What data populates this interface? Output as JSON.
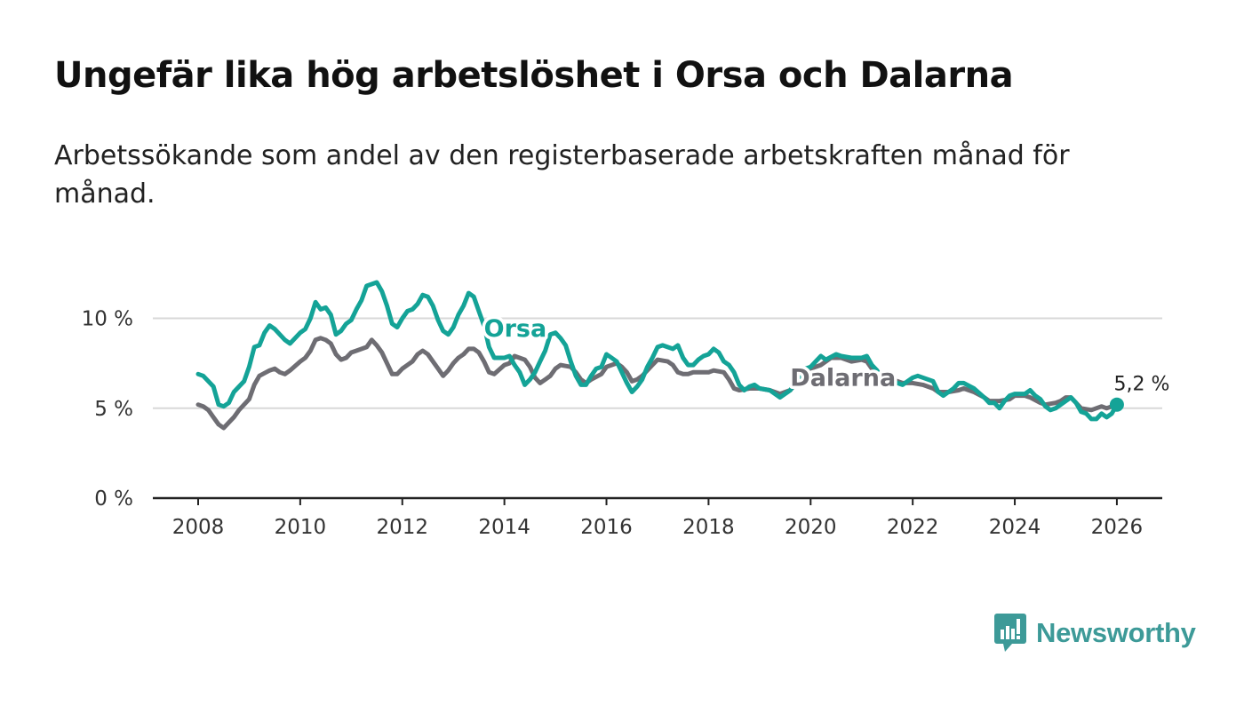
{
  "title": "Ungefär lika hög arbetslöshet i Orsa och Dalarna",
  "subtitle": "Arbetssökande som andel av den registerbaserade arbetskraften månad för månad.",
  "brand": {
    "name": "Newsworthy",
    "icon": "newsworthy-logo-icon",
    "color": "#3d9a98"
  },
  "chart_data": {
    "type": "line",
    "title": "Ungefär lika hög arbetslöshet i Orsa och Dalarna",
    "xlabel": "",
    "ylabel": "",
    "xlim": [
      2007.6,
      2026.9
    ],
    "ylim": [
      0,
      12
    ],
    "x_ticks": [
      2008,
      2010,
      2012,
      2014,
      2016,
      2018,
      2020,
      2022,
      2024,
      2026
    ],
    "x_tick_labels": [
      "2008",
      "2010",
      "2012",
      "2014",
      "2016",
      "2018",
      "2020",
      "2022",
      "2024",
      "2026"
    ],
    "y_ticks": [
      0,
      5,
      10
    ],
    "y_tick_labels": [
      "0 %",
      "5 %",
      "10 %"
    ],
    "grid": true,
    "end_label": "5,2 %",
    "series": [
      {
        "name": "Orsa",
        "color": "#14a397",
        "label_position": [
          2013.6,
          9.0
        ],
        "points": [
          [
            2008.0,
            6.9
          ],
          [
            2008.1,
            6.8
          ],
          [
            2008.3,
            6.2
          ],
          [
            2008.4,
            5.2
          ],
          [
            2008.5,
            5.1
          ],
          [
            2008.6,
            5.3
          ],
          [
            2008.7,
            5.9
          ],
          [
            2008.9,
            6.5
          ],
          [
            2009.0,
            7.3
          ],
          [
            2009.1,
            8.4
          ],
          [
            2009.2,
            8.5
          ],
          [
            2009.3,
            9.2
          ],
          [
            2009.4,
            9.6
          ],
          [
            2009.5,
            9.4
          ],
          [
            2009.7,
            8.8
          ],
          [
            2009.8,
            8.6
          ],
          [
            2010.0,
            9.2
          ],
          [
            2010.1,
            9.4
          ],
          [
            2010.2,
            10.0
          ],
          [
            2010.3,
            10.9
          ],
          [
            2010.4,
            10.5
          ],
          [
            2010.5,
            10.6
          ],
          [
            2010.6,
            10.2
          ],
          [
            2010.7,
            9.1
          ],
          [
            2010.8,
            9.3
          ],
          [
            2010.9,
            9.7
          ],
          [
            2011.0,
            9.9
          ],
          [
            2011.1,
            10.5
          ],
          [
            2011.2,
            11.0
          ],
          [
            2011.3,
            11.8
          ],
          [
            2011.4,
            11.9
          ],
          [
            2011.5,
            12.0
          ],
          [
            2011.6,
            11.5
          ],
          [
            2011.7,
            10.7
          ],
          [
            2011.8,
            9.7
          ],
          [
            2011.9,
            9.5
          ],
          [
            2012.0,
            10.0
          ],
          [
            2012.1,
            10.4
          ],
          [
            2012.2,
            10.5
          ],
          [
            2012.3,
            10.8
          ],
          [
            2012.4,
            11.3
          ],
          [
            2012.5,
            11.2
          ],
          [
            2012.6,
            10.7
          ],
          [
            2012.7,
            9.9
          ],
          [
            2012.8,
            9.3
          ],
          [
            2012.9,
            9.1
          ],
          [
            2013.0,
            9.5
          ],
          [
            2013.1,
            10.2
          ],
          [
            2013.2,
            10.7
          ],
          [
            2013.3,
            11.4
          ],
          [
            2013.4,
            11.2
          ],
          [
            2013.5,
            10.4
          ],
          [
            2013.6,
            9.6
          ],
          [
            2013.7,
            8.4
          ],
          [
            2013.8,
            7.8
          ],
          [
            2014.0,
            7.8
          ],
          [
            2014.1,
            7.9
          ],
          [
            2014.2,
            7.4
          ],
          [
            2014.3,
            7.0
          ],
          [
            2014.4,
            6.3
          ],
          [
            2014.5,
            6.6
          ],
          [
            2014.6,
            7.0
          ],
          [
            2014.7,
            7.6
          ],
          [
            2014.8,
            8.2
          ],
          [
            2014.9,
            9.1
          ],
          [
            2015.0,
            9.2
          ],
          [
            2015.1,
            8.9
          ],
          [
            2015.2,
            8.5
          ],
          [
            2015.3,
            7.6
          ],
          [
            2015.4,
            6.8
          ],
          [
            2015.5,
            6.3
          ],
          [
            2015.6,
            6.3
          ],
          [
            2015.7,
            6.8
          ],
          [
            2015.8,
            7.2
          ],
          [
            2015.9,
            7.3
          ],
          [
            2016.0,
            8.0
          ],
          [
            2016.1,
            7.8
          ],
          [
            2016.2,
            7.6
          ],
          [
            2016.3,
            7.0
          ],
          [
            2016.4,
            6.4
          ],
          [
            2016.5,
            5.9
          ],
          [
            2016.6,
            6.2
          ],
          [
            2016.7,
            6.6
          ],
          [
            2016.8,
            7.3
          ],
          [
            2016.9,
            7.8
          ],
          [
            2017.0,
            8.4
          ],
          [
            2017.1,
            8.5
          ],
          [
            2017.3,
            8.3
          ],
          [
            2017.4,
            8.5
          ],
          [
            2017.5,
            7.8
          ],
          [
            2017.6,
            7.4
          ],
          [
            2017.7,
            7.4
          ],
          [
            2017.8,
            7.7
          ],
          [
            2017.9,
            7.9
          ],
          [
            2018.0,
            8.0
          ],
          [
            2018.1,
            8.3
          ],
          [
            2018.2,
            8.1
          ],
          [
            2018.3,
            7.6
          ],
          [
            2018.4,
            7.4
          ],
          [
            2018.5,
            7.0
          ],
          [
            2018.6,
            6.3
          ],
          [
            2018.7,
            6.0
          ],
          [
            2018.8,
            6.2
          ],
          [
            2018.9,
            6.3
          ],
          [
            2019.0,
            6.1
          ],
          [
            2019.2,
            6.0
          ],
          [
            2019.4,
            5.6
          ],
          [
            2019.6,
            6.0
          ],
          [
            2019.9,
            7.2
          ],
          [
            2020.0,
            7.3
          ],
          [
            2020.1,
            7.6
          ],
          [
            2020.2,
            7.9
          ],
          [
            2020.3,
            7.7
          ],
          [
            2020.5,
            8.0
          ],
          [
            2020.6,
            7.9
          ],
          [
            2020.8,
            7.8
          ],
          [
            2021.0,
            7.8
          ],
          [
            2021.1,
            7.9
          ],
          [
            2021.2,
            7.4
          ],
          [
            2021.3,
            7.1
          ],
          [
            2021.4,
            6.6
          ],
          [
            2021.5,
            6.6
          ],
          [
            2021.7,
            6.4
          ],
          [
            2021.8,
            6.3
          ],
          [
            2022.0,
            6.7
          ],
          [
            2022.1,
            6.8
          ],
          [
            2022.2,
            6.7
          ],
          [
            2022.4,
            6.5
          ],
          [
            2022.5,
            5.9
          ],
          [
            2022.6,
            5.7
          ],
          [
            2022.7,
            5.9
          ],
          [
            2022.8,
            6.1
          ],
          [
            2022.9,
            6.4
          ],
          [
            2023.0,
            6.4
          ],
          [
            2023.2,
            6.1
          ],
          [
            2023.4,
            5.6
          ],
          [
            2023.5,
            5.3
          ],
          [
            2023.6,
            5.3
          ],
          [
            2023.7,
            5.0
          ],
          [
            2023.8,
            5.4
          ],
          [
            2023.9,
            5.7
          ],
          [
            2024.0,
            5.8
          ],
          [
            2024.2,
            5.8
          ],
          [
            2024.3,
            6.0
          ],
          [
            2024.4,
            5.7
          ],
          [
            2024.5,
            5.5
          ],
          [
            2024.6,
            5.1
          ],
          [
            2024.7,
            4.9
          ],
          [
            2024.8,
            5.0
          ],
          [
            2024.9,
            5.2
          ],
          [
            2025.0,
            5.4
          ],
          [
            2025.1,
            5.6
          ],
          [
            2025.2,
            5.3
          ],
          [
            2025.3,
            4.8
          ],
          [
            2025.4,
            4.7
          ],
          [
            2025.5,
            4.4
          ],
          [
            2025.6,
            4.4
          ],
          [
            2025.7,
            4.7
          ],
          [
            2025.8,
            4.5
          ],
          [
            2025.9,
            4.7
          ],
          [
            2026.0,
            5.2
          ]
        ]
      },
      {
        "name": "Dalarna",
        "color": "#6e6d73",
        "label_position": [
          2019.6,
          6.25
        ],
        "points": [
          [
            2008.0,
            5.2
          ],
          [
            2008.1,
            5.1
          ],
          [
            2008.2,
            4.9
          ],
          [
            2008.3,
            4.5
          ],
          [
            2008.4,
            4.1
          ],
          [
            2008.5,
            3.9
          ],
          [
            2008.6,
            4.2
          ],
          [
            2008.7,
            4.5
          ],
          [
            2008.8,
            4.9
          ],
          [
            2009.0,
            5.5
          ],
          [
            2009.1,
            6.3
          ],
          [
            2009.2,
            6.8
          ],
          [
            2009.4,
            7.1
          ],
          [
            2009.5,
            7.2
          ],
          [
            2009.6,
            7.0
          ],
          [
            2009.7,
            6.9
          ],
          [
            2009.8,
            7.1
          ],
          [
            2010.0,
            7.6
          ],
          [
            2010.1,
            7.8
          ],
          [
            2010.2,
            8.2
          ],
          [
            2010.3,
            8.8
          ],
          [
            2010.4,
            8.9
          ],
          [
            2010.5,
            8.8
          ],
          [
            2010.6,
            8.6
          ],
          [
            2010.7,
            8.0
          ],
          [
            2010.8,
            7.7
          ],
          [
            2010.9,
            7.8
          ],
          [
            2011.0,
            8.1
          ],
          [
            2011.1,
            8.2
          ],
          [
            2011.3,
            8.4
          ],
          [
            2011.4,
            8.8
          ],
          [
            2011.5,
            8.5
          ],
          [
            2011.6,
            8.1
          ],
          [
            2011.7,
            7.5
          ],
          [
            2011.8,
            6.9
          ],
          [
            2011.9,
            6.9
          ],
          [
            2012.0,
            7.2
          ],
          [
            2012.1,
            7.4
          ],
          [
            2012.2,
            7.6
          ],
          [
            2012.3,
            8.0
          ],
          [
            2012.4,
            8.2
          ],
          [
            2012.5,
            8.0
          ],
          [
            2012.6,
            7.6
          ],
          [
            2012.7,
            7.2
          ],
          [
            2012.8,
            6.8
          ],
          [
            2012.9,
            7.1
          ],
          [
            2013.0,
            7.5
          ],
          [
            2013.1,
            7.8
          ],
          [
            2013.2,
            8.0
          ],
          [
            2013.3,
            8.3
          ],
          [
            2013.4,
            8.3
          ],
          [
            2013.5,
            8.1
          ],
          [
            2013.6,
            7.6
          ],
          [
            2013.7,
            7.0
          ],
          [
            2013.8,
            6.9
          ],
          [
            2014.0,
            7.4
          ],
          [
            2014.1,
            7.5
          ],
          [
            2014.2,
            7.9
          ],
          [
            2014.4,
            7.7
          ],
          [
            2014.5,
            7.3
          ],
          [
            2014.6,
            6.7
          ],
          [
            2014.7,
            6.4
          ],
          [
            2014.8,
            6.6
          ],
          [
            2014.9,
            6.8
          ],
          [
            2015.0,
            7.2
          ],
          [
            2015.1,
            7.4
          ],
          [
            2015.3,
            7.3
          ],
          [
            2015.4,
            7.0
          ],
          [
            2015.5,
            6.6
          ],
          [
            2015.6,
            6.4
          ],
          [
            2015.7,
            6.6
          ],
          [
            2015.9,
            6.9
          ],
          [
            2016.0,
            7.3
          ],
          [
            2016.2,
            7.5
          ],
          [
            2016.3,
            7.3
          ],
          [
            2016.4,
            7.0
          ],
          [
            2016.5,
            6.5
          ],
          [
            2016.6,
            6.6
          ],
          [
            2016.7,
            6.8
          ],
          [
            2016.8,
            7.1
          ],
          [
            2016.9,
            7.4
          ],
          [
            2017.0,
            7.7
          ],
          [
            2017.2,
            7.6
          ],
          [
            2017.3,
            7.4
          ],
          [
            2017.4,
            7.0
          ],
          [
            2017.5,
            6.9
          ],
          [
            2017.6,
            6.9
          ],
          [
            2017.7,
            7.0
          ],
          [
            2018.0,
            7.0
          ],
          [
            2018.1,
            7.1
          ],
          [
            2018.3,
            7.0
          ],
          [
            2018.4,
            6.6
          ],
          [
            2018.5,
            6.1
          ],
          [
            2018.6,
            6.0
          ],
          [
            2018.8,
            6.1
          ],
          [
            2018.9,
            6.1
          ],
          [
            2019.0,
            6.1
          ],
          [
            2019.2,
            6.0
          ],
          [
            2019.4,
            5.8
          ],
          [
            2019.6,
            6.0
          ],
          [
            2019.9,
            7.0
          ],
          [
            2020.0,
            7.2
          ],
          [
            2020.2,
            7.4
          ],
          [
            2020.4,
            7.8
          ],
          [
            2020.6,
            7.8
          ],
          [
            2020.8,
            7.6
          ],
          [
            2021.0,
            7.7
          ],
          [
            2021.1,
            7.6
          ],
          [
            2021.2,
            7.2
          ],
          [
            2021.3,
            6.9
          ],
          [
            2021.4,
            6.7
          ],
          [
            2021.6,
            6.6
          ],
          [
            2021.8,
            6.4
          ],
          [
            2022.0,
            6.4
          ],
          [
            2022.2,
            6.3
          ],
          [
            2022.4,
            6.1
          ],
          [
            2022.5,
            5.9
          ],
          [
            2022.7,
            5.9
          ],
          [
            2022.9,
            6.0
          ],
          [
            2023.0,
            6.1
          ],
          [
            2023.2,
            5.9
          ],
          [
            2023.4,
            5.6
          ],
          [
            2023.5,
            5.4
          ],
          [
            2023.7,
            5.4
          ],
          [
            2023.9,
            5.5
          ],
          [
            2024.0,
            5.7
          ],
          [
            2024.2,
            5.7
          ],
          [
            2024.3,
            5.6
          ],
          [
            2024.5,
            5.3
          ],
          [
            2024.6,
            5.2
          ],
          [
            2024.8,
            5.3
          ],
          [
            2024.9,
            5.4
          ],
          [
            2025.0,
            5.6
          ],
          [
            2025.1,
            5.6
          ],
          [
            2025.2,
            5.3
          ],
          [
            2025.3,
            5.0
          ],
          [
            2025.5,
            4.9
          ],
          [
            2025.7,
            5.1
          ],
          [
            2025.8,
            5.0
          ],
          [
            2026.0,
            5.2
          ]
        ]
      }
    ]
  }
}
